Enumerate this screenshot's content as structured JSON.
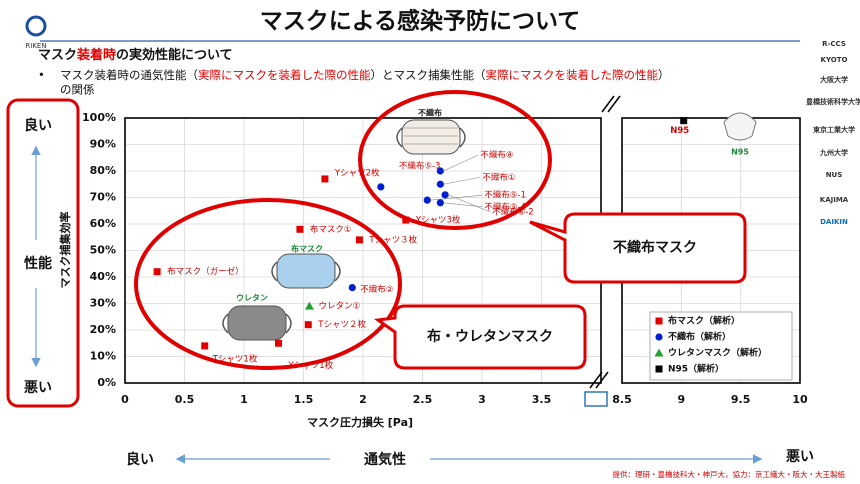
{
  "slide": {
    "title": "マスクによる感染予防について",
    "subtitle": [
      "マスク",
      "装着時",
      "の実効性能について"
    ],
    "bullet": [
      "マスク装着時の通気性能（",
      "実際にマスクを装着した際の性能",
      "）とマスク捕集性能（",
      "実際にマスクを装着した際の性能",
      "）",
      "の関係"
    ],
    "side": {
      "top": "良い",
      "middle": "性能",
      "bottom": "悪い"
    },
    "bottom": {
      "left": "良い",
      "middle": "通気性",
      "right": "悪い"
    },
    "credit": "提供：理研・豊橋技科大・神戸大，協力：京工繊大・阪大・大王製紙",
    "callouts": [
      "不織布マスク",
      "布・ウレタンマスク"
    ],
    "image_labels": [
      "不織布",
      "布マスク",
      "ウレタン",
      "N95"
    ],
    "logos": [
      "RIKEN",
      "R-CCS",
      "KYOTO",
      "大阪大学",
      "豊橋技術科学大学",
      "東京工業大学",
      "九州大学",
      "NUS",
      "KAJIMA",
      "DAIKIN"
    ]
  },
  "chart_data": {
    "type": "scatter",
    "x_label": "マスク圧力損失 [Pa]",
    "y_label": "マスク捕集効率",
    "xlim": [
      [
        0,
        4
      ],
      [
        8.5,
        10
      ]
    ],
    "xticks": [
      0,
      0.5,
      1,
      1.5,
      2,
      2.5,
      3,
      3.5,
      8.5,
      9,
      9.5,
      10
    ],
    "ylim": [
      0,
      100
    ],
    "yticks": [
      {
        "value": 0,
        "label": "0%"
      },
      {
        "value": 10,
        "label": "10%"
      },
      {
        "value": 20,
        "label": "20%"
      },
      {
        "value": 30,
        "label": "30%"
      },
      {
        "value": 40,
        "label": "40%"
      },
      {
        "value": 50,
        "label": "50%"
      },
      {
        "value": 60,
        "label": "60%"
      },
      {
        "value": 70,
        "label": "70%"
      },
      {
        "value": 80,
        "label": "80%"
      },
      {
        "value": 90,
        "label": "90%"
      },
      {
        "value": 100,
        "label": "100%"
      }
    ],
    "grid": true,
    "legend": "lower right",
    "series": [
      {
        "name": "布マスク（解析）",
        "color": "#e00000",
        "marker": "square",
        "x": [
          0.27,
          0.67,
          1.29,
          1.54,
          1.47,
          1.97,
          1.68,
          2.36
        ],
        "values": [
          42,
          14,
          15,
          22,
          58,
          54,
          77,
          61.5
        ],
        "labels": [
          "布マスク（ガーゼ）",
          "Tシャツ1枚",
          "Yシャツ1枚",
          "Tシャツ２枚",
          "布マスク①",
          "Tシャツ３枚",
          "Yシャツ2枚",
          "Yシャツ3枚"
        ]
      },
      {
        "name": "不織布（解析）",
        "color": "#0020d0",
        "marker": "circle",
        "x": [
          2.15,
          1.91,
          2.65,
          2.65,
          2.54,
          2.65,
          2.69
        ],
        "values": [
          74,
          36,
          80,
          75,
          69,
          68,
          71
        ],
        "labels": [
          "不織布⑤-3",
          "不織布②",
          "不織布⑧",
          "不織布①",
          "不織布⑤-1",
          "不織布⑤-4",
          "不織布⑥-2"
        ]
      },
      {
        "name": "ウレタンマスク（解析）",
        "color": "#22a030",
        "marker": "triangle",
        "x": [
          1.55
        ],
        "values": [
          29
        ],
        "labels": [
          "ウレタン①"
        ]
      },
      {
        "name": "N95（解析）",
        "color": "#000000",
        "marker": "square",
        "x": [
          9.02
        ],
        "values": [
          99
        ],
        "labels": [
          "N95"
        ]
      }
    ]
  }
}
